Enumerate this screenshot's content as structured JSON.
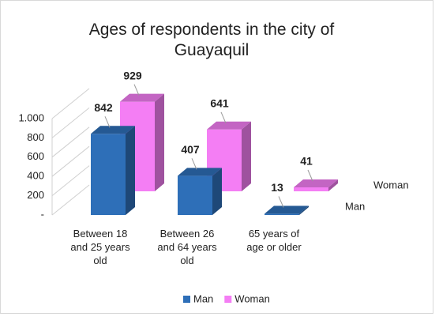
{
  "chart_data": {
    "type": "bar3d",
    "title": "Ages of respondents in the city of Guayaquil",
    "categories": [
      "Between 18 and 25 years old",
      "Between 26 and 64 years old",
      "65 years of age or older"
    ],
    "series": [
      {
        "name": "Man",
        "color": "#2e6fb8",
        "values": [
          842,
          407,
          13
        ]
      },
      {
        "name": "Woman",
        "color": "#f47ef4",
        "values": [
          929,
          641,
          41
        ]
      }
    ],
    "ylim": [
      0,
      1000
    ],
    "yticks": [
      {
        "value": 0,
        "label": "-"
      },
      200,
      400,
      600,
      800,
      {
        "value": 1000,
        "label": "1.000"
      }
    ],
    "grid": true,
    "legend": "bottom"
  }
}
